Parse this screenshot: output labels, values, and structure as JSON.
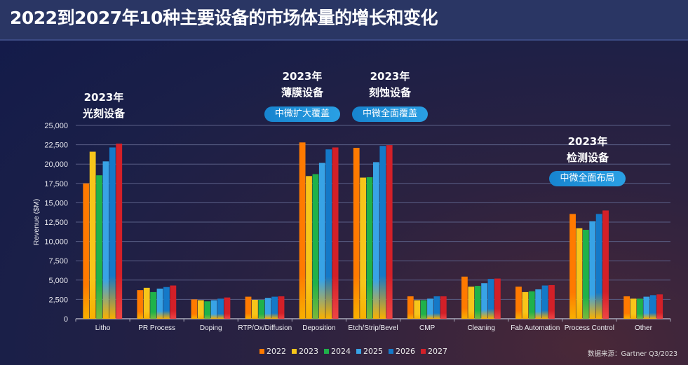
{
  "header": {
    "title": "2022到2027年10种主要设备的市场体量的增长和变化"
  },
  "annotations": [
    {
      "year": "2023年",
      "label": "光刻设备",
      "badge": ""
    },
    {
      "year": "2023年",
      "label": "薄膜设备",
      "badge": "中微扩大覆盖"
    },
    {
      "year": "2023年",
      "label": "刻蚀设备",
      "badge": "中微全面覆盖"
    },
    {
      "year": "2023年",
      "label": "检测设备",
      "badge": "中微全面布局"
    }
  ],
  "source": "数据来源：Gartner Q3/2023",
  "chart_data": {
    "type": "bar",
    "title": "",
    "xlabel": "",
    "ylabel": "Revenue ($M)",
    "ylim": [
      0,
      25000
    ],
    "yticks": [
      "0",
      "2,500",
      "5,000",
      "7,500",
      "10,000",
      "12,500",
      "15,000",
      "17,500",
      "20,000",
      "22,500",
      "25,000"
    ],
    "grid": true,
    "legend": "bottom",
    "categories": [
      "Litho",
      "PR Process",
      "Doping",
      "RTP/Ox/Diffusion",
      "Deposition",
      "Etch/Strip/Bevel",
      "CMP",
      "Cleaning",
      "Fab Automation",
      "Process Control",
      "Other"
    ],
    "series": [
      {
        "name": "2022",
        "color": "#ff7a00",
        "values": [
          17500,
          3700,
          2500,
          2850,
          22800,
          22100,
          2900,
          5450,
          4150,
          13550,
          2900
        ]
      },
      {
        "name": "2023",
        "color": "#f7c51a",
        "values": [
          21600,
          4000,
          2400,
          2450,
          18450,
          18250,
          2400,
          4150,
          3450,
          11700,
          2600
        ]
      },
      {
        "name": "2024",
        "color": "#1fb24a",
        "values": [
          18550,
          3450,
          2250,
          2450,
          18700,
          18300,
          2400,
          4250,
          3550,
          11500,
          2600
        ]
      },
      {
        "name": "2025",
        "color": "#38a3e6",
        "values": [
          20350,
          3900,
          2400,
          2700,
          20150,
          20250,
          2600,
          4600,
          3800,
          12600,
          2850
        ]
      },
      {
        "name": "2026",
        "color": "#1479c8",
        "values": [
          22150,
          4100,
          2600,
          2850,
          21900,
          22350,
          2900,
          5150,
          4300,
          13550,
          3050
        ]
      },
      {
        "name": "2027",
        "color": "#d32028",
        "values": [
          22650,
          4300,
          2750,
          2900,
          22150,
          22450,
          2900,
          5200,
          4350,
          14000,
          3150
        ]
      }
    ]
  }
}
